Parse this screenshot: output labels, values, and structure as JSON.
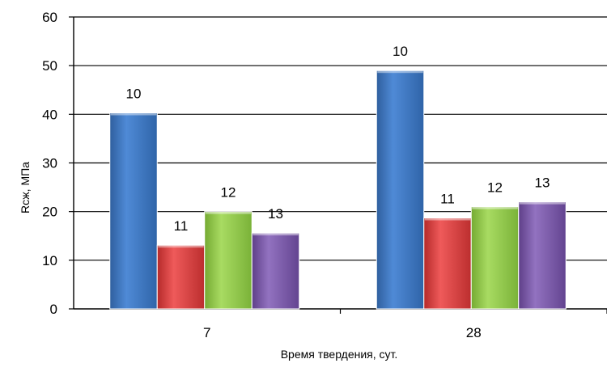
{
  "chart_data": {
    "type": "bar",
    "title": "",
    "xlabel": "Время твердения, сут.",
    "ylabel": "Rсж, МПа",
    "ylim": [
      0,
      60
    ],
    "yticks": [
      0,
      10,
      20,
      30,
      40,
      50,
      60
    ],
    "categories": [
      "7",
      "28"
    ],
    "series": [
      {
        "name": "",
        "values": [
          40.3,
          49.0
        ],
        "data_labels": [
          "10",
          "10"
        ],
        "color": "#3f78c3"
      },
      {
        "name": "",
        "values": [
          13.1,
          18.7
        ],
        "data_labels": [
          "11",
          "11"
        ],
        "color": "#d93a3a"
      },
      {
        "name": "",
        "values": [
          20.0,
          21.0
        ],
        "data_labels": [
          "12",
          "12"
        ],
        "color": "#92c94a"
      },
      {
        "name": "",
        "values": [
          15.6,
          22.0
        ],
        "data_labels": [
          "13",
          "13"
        ],
        "color": "#7b5aa6"
      }
    ],
    "grid": true,
    "legend": "none"
  }
}
